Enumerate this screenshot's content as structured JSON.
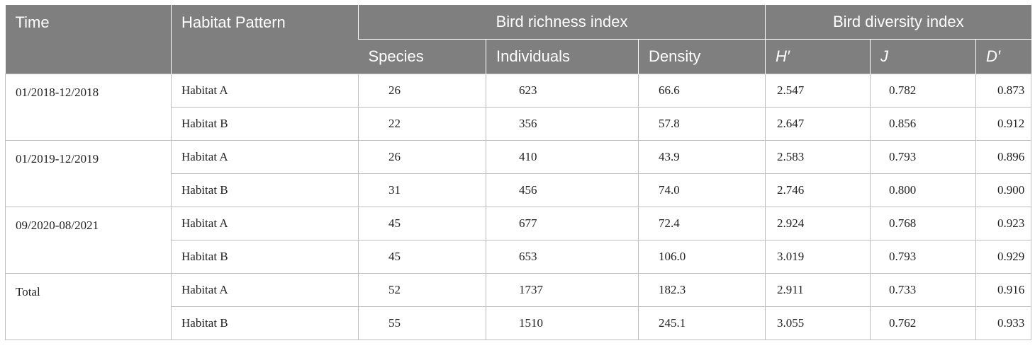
{
  "header": {
    "time": "Time",
    "habitat_pattern": "Habitat Pattern",
    "richness_group": "Bird richness index",
    "diversity_group": "Bird diversity index",
    "species": "Species",
    "individuals": "Individuals",
    "density": "Density",
    "h": "H′",
    "j": "J",
    "d": "D′"
  },
  "groups": [
    {
      "time": "01/2018-12/2018",
      "rows": [
        {
          "habitat": "Habitat A",
          "species": "26",
          "individuals": "623",
          "density": "66.6",
          "h": "2.547",
          "j": "0.782",
          "d": "0.873"
        },
        {
          "habitat": "Habitat B",
          "species": "22",
          "individuals": "356",
          "density": "57.8",
          "h": "2.647",
          "j": "0.856",
          "d": "0.912"
        }
      ]
    },
    {
      "time": "01/2019-12/2019",
      "rows": [
        {
          "habitat": "Habitat A",
          "species": "26",
          "individuals": "410",
          "density": "43.9",
          "h": "2.583",
          "j": "0.793",
          "d": "0.896"
        },
        {
          "habitat": "Habitat B",
          "species": "31",
          "individuals": "456",
          "density": "74.0",
          "h": "2.746",
          "j": "0.800",
          "d": "0.900"
        }
      ]
    },
    {
      "time": "09/2020-08/2021",
      "rows": [
        {
          "habitat": "Habitat A",
          "species": "45",
          "individuals": "677",
          "density": "72.4",
          "h": "2.924",
          "j": "0.768",
          "d": "0.923"
        },
        {
          "habitat": "Habitat B",
          "species": "45",
          "individuals": "653",
          "density": "106.0",
          "h": "3.019",
          "j": "0.793",
          "d": "0.929"
        }
      ]
    },
    {
      "time": "Total",
      "rows": [
        {
          "habitat": "Habitat A",
          "species": "52",
          "individuals": "1737",
          "density": "182.3",
          "h": "2.911",
          "j": "0.733",
          "d": "0.916"
        },
        {
          "habitat": "Habitat B",
          "species": "55",
          "individuals": "1510",
          "density": "245.1",
          "h": "3.055",
          "j": "0.762",
          "d": "0.933"
        }
      ]
    }
  ]
}
